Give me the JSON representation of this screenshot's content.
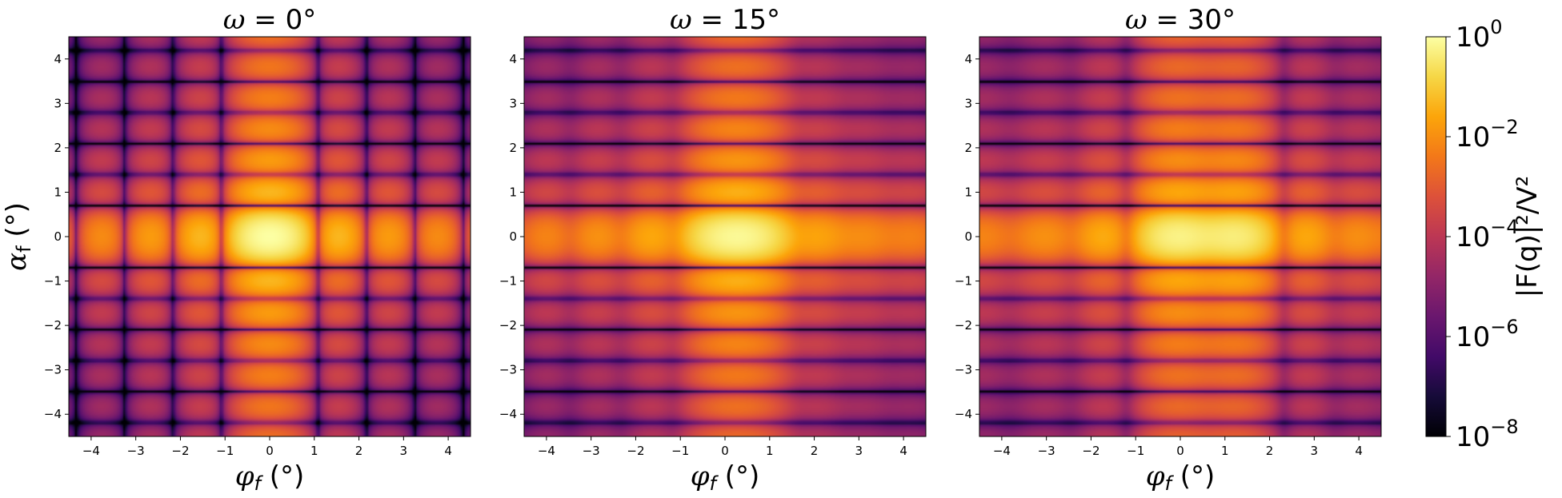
{
  "chart_data": [
    {
      "type": "heatmap",
      "title": "ω = 0°",
      "xlabel": "φf (°)",
      "ylabel": "αf (°)",
      "xlim": [
        -4.5,
        4.5
      ],
      "ylim": [
        -4.5,
        4.5
      ],
      "xticks": [
        -4,
        -3,
        -2,
        -1,
        0,
        1,
        2,
        3,
        4
      ],
      "yticks": [
        -4,
        -3,
        -2,
        -1,
        0,
        1,
        2,
        3,
        4
      ],
      "omega_deg": 0,
      "peak": {
        "x": 0,
        "y": 0,
        "value": 1.0
      },
      "colormap": "inferno",
      "scale": "log"
    },
    {
      "type": "heatmap",
      "title": "ω = 15°",
      "xlabel": "φf (°)",
      "ylabel": "",
      "xlim": [
        -4.5,
        4.5
      ],
      "ylim": [
        -4.5,
        4.5
      ],
      "xticks": [
        -4,
        -3,
        -2,
        -1,
        0,
        1,
        2,
        3,
        4
      ],
      "yticks": [
        -4,
        -3,
        -2,
        -1,
        0,
        1,
        2,
        3,
        4
      ],
      "omega_deg": 15,
      "peak": {
        "x": 0,
        "y": 0,
        "value": 1.0
      },
      "colormap": "inferno",
      "scale": "log"
    },
    {
      "type": "heatmap",
      "title": "ω = 30°",
      "xlabel": "φf (°)",
      "ylabel": "",
      "xlim": [
        -4.5,
        4.5
      ],
      "ylim": [
        -4.5,
        4.5
      ],
      "xticks": [
        -4,
        -3,
        -2,
        -1,
        0,
        1,
        2,
        3,
        4
      ],
      "yticks": [
        -4,
        -3,
        -2,
        -1,
        0,
        1,
        2,
        3,
        4
      ],
      "omega_deg": 30,
      "peak": {
        "x": 0,
        "y": 0,
        "value": 1.0
      },
      "colormap": "inferno",
      "scale": "log"
    }
  ],
  "colorbar": {
    "label": "|F(q)|²/V²",
    "scale": "log",
    "range": [
      1e-08,
      1
    ],
    "ticks": [
      {
        "value": 1,
        "base": "10",
        "exp": "0"
      },
      {
        "value": 0.01,
        "base": "10",
        "exp": "−2"
      },
      {
        "value": 0.0001,
        "base": "10",
        "exp": "−4"
      },
      {
        "value": 1e-06,
        "base": "10",
        "exp": "−6"
      },
      {
        "value": 1e-08,
        "base": "10",
        "exp": "−8"
      }
    ],
    "colormap": "inferno"
  }
}
